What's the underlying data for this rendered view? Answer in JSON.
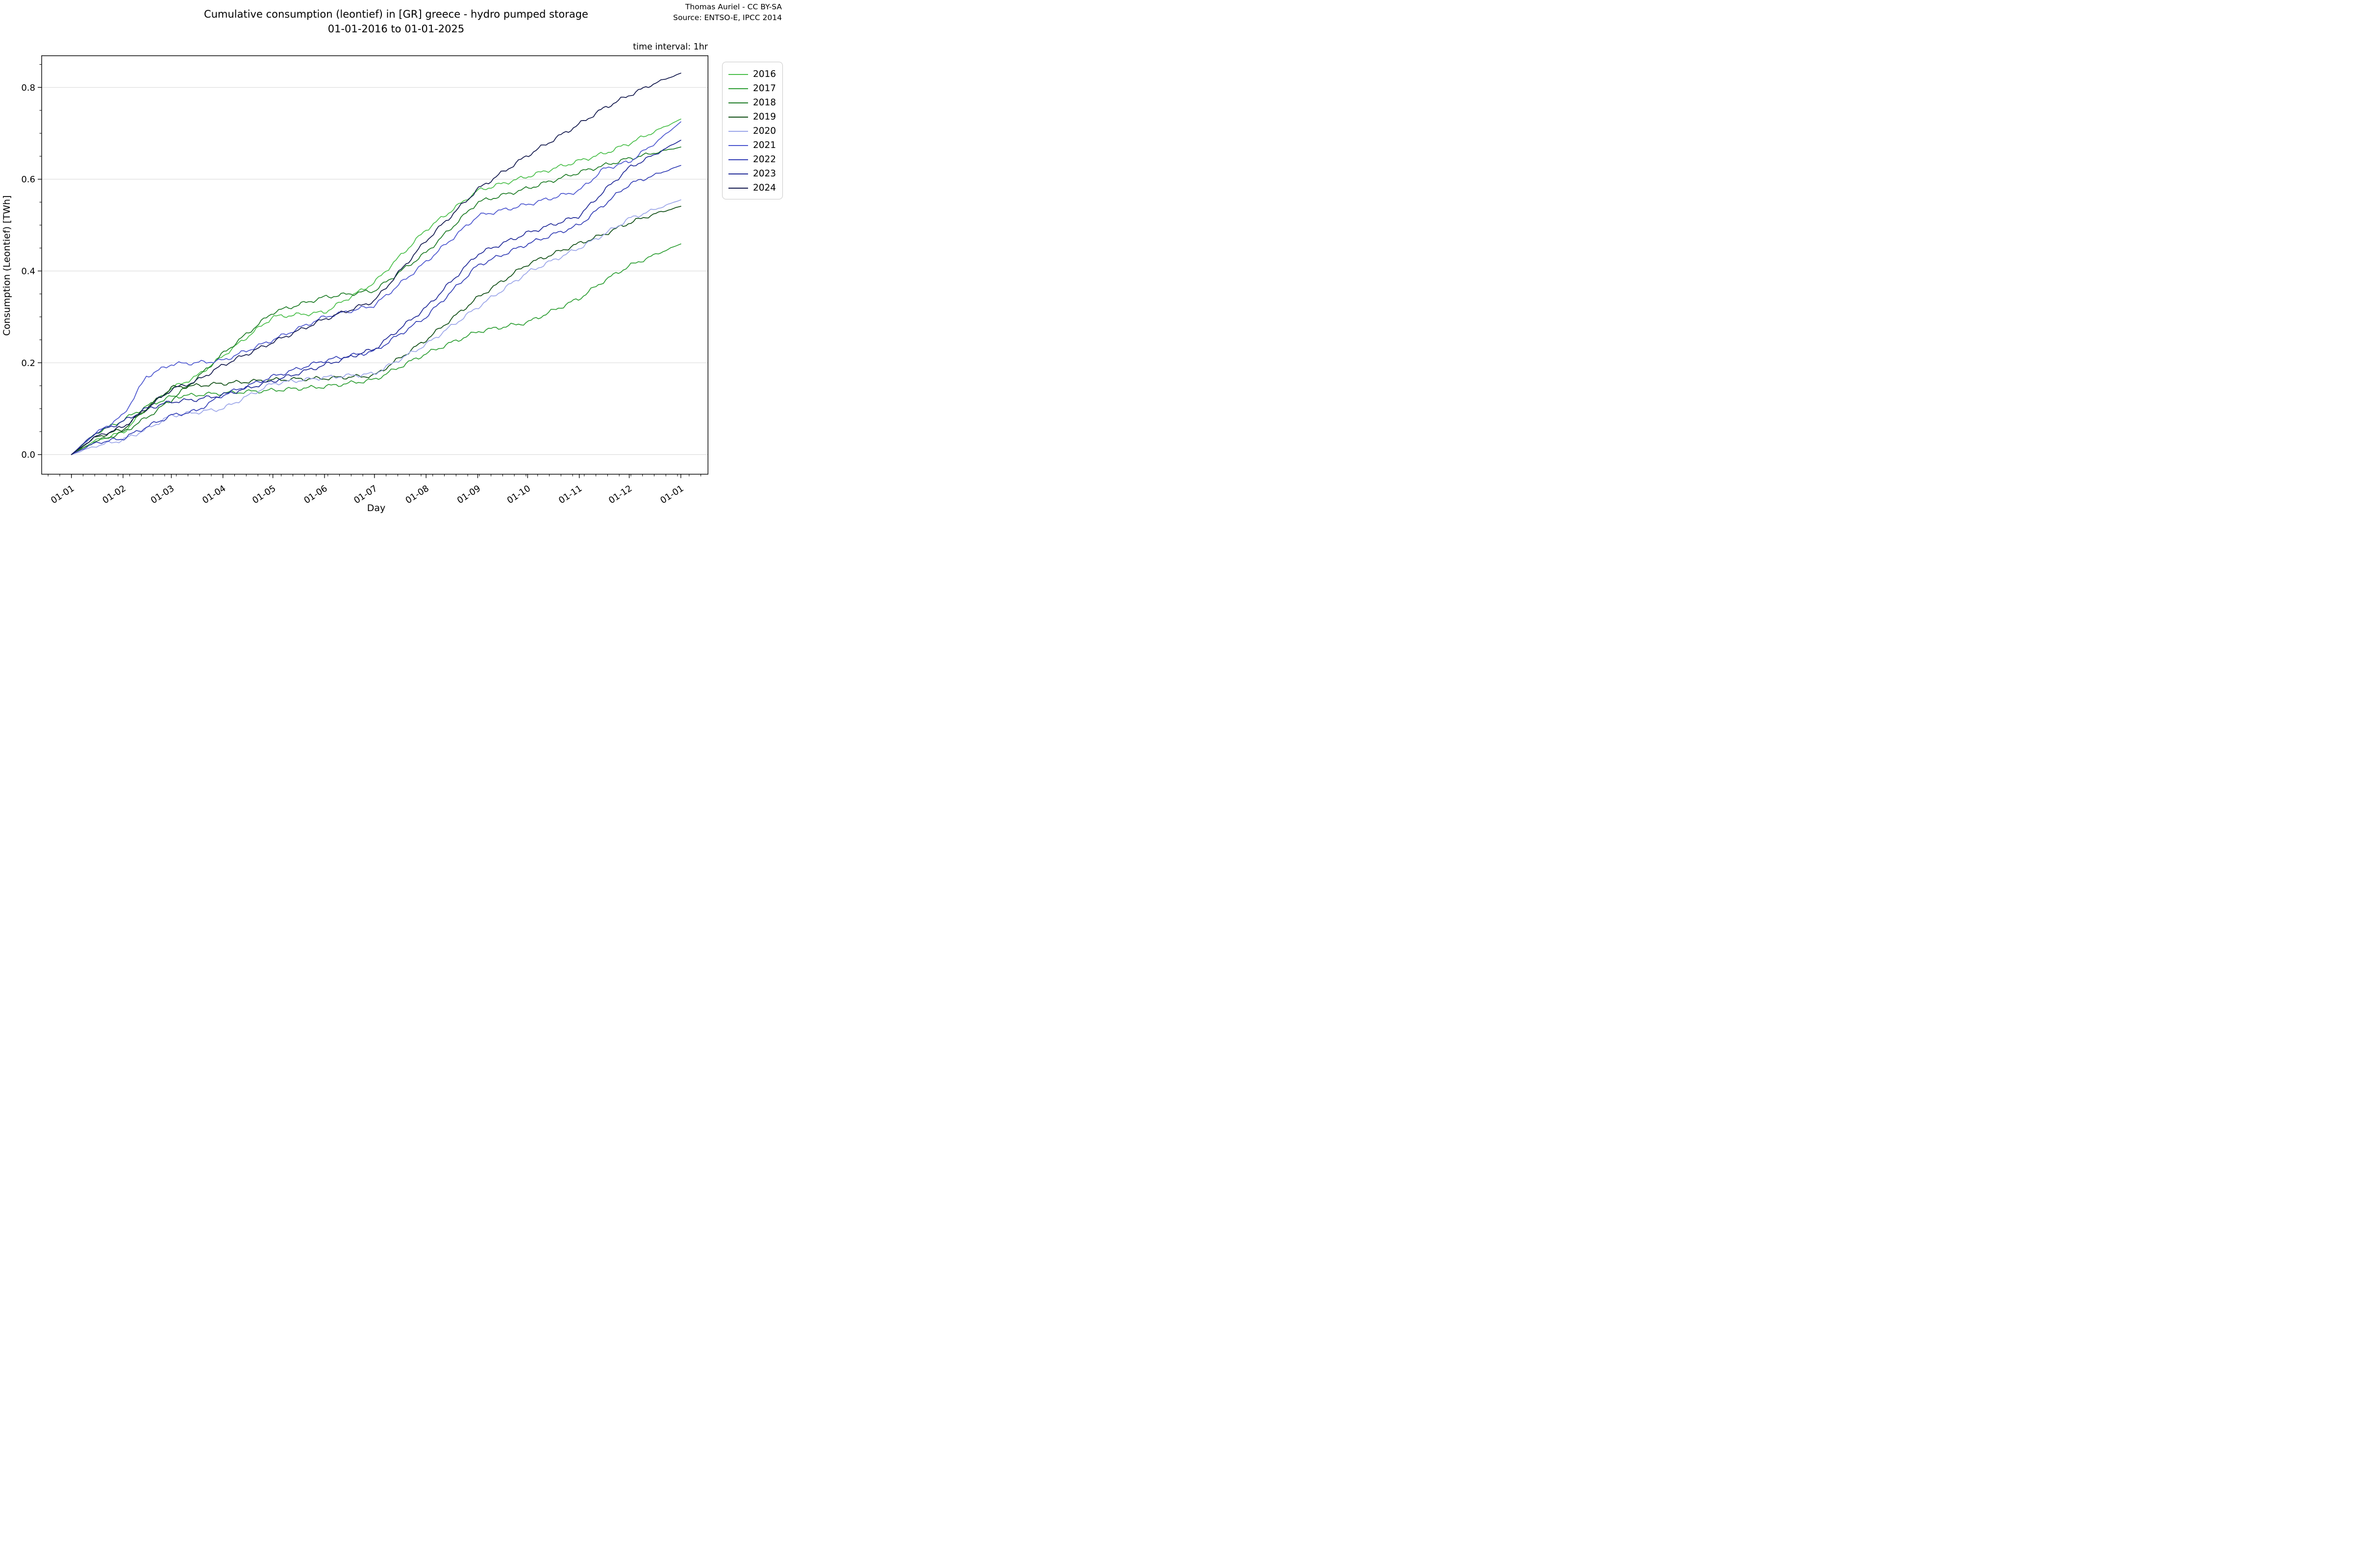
{
  "header": {
    "title_line1": "Cumulative consumption (leontief) in [GR] greece - hydro pumped storage",
    "title_line2": "01-01-2016 to 01-01-2025",
    "credit_line1": "Thomas Auriel - CC BY-SA",
    "credit_line2": "Source: ENTSO-E, IPCC 2014",
    "interval_note": "time interval: 1hr"
  },
  "chart_data": {
    "type": "line",
    "title": "Cumulative consumption (leontief) in [GR] greece - hydro pumped storage",
    "subtitle": "01-01-2016 to 01-01-2025",
    "xlabel": "Day",
    "ylabel": "Consumption (Leontief) [TWh]",
    "grid": "horizontal-only",
    "legend_position": "outside-upper-right",
    "x_axis": {
      "tick_days": [
        0,
        31,
        60,
        91,
        121,
        152,
        182,
        213,
        244,
        274,
        305,
        335,
        366
      ],
      "tick_labels": [
        "01-01",
        "01-02",
        "01-03",
        "01-04",
        "01-05",
        "01-06",
        "01-07",
        "01-08",
        "01-09",
        "01-10",
        "01-11",
        "01-12",
        "01-01"
      ],
      "range_days": [
        0,
        366
      ]
    },
    "y_axis": {
      "ticks": [
        0.0,
        0.2,
        0.4,
        0.6,
        0.8
      ],
      "tick_labels": [
        "0.0",
        "0.2",
        "0.4",
        "0.6",
        "0.8"
      ],
      "ylim": [
        -0.04,
        0.87
      ]
    },
    "sample_days": [
      0,
      14,
      31,
      45,
      60,
      75,
      91,
      121,
      152,
      182,
      213,
      244,
      274,
      305,
      320,
      335,
      351,
      366
    ],
    "series": [
      {
        "name": "2016",
        "color": "#4bbf4b",
        "values": [
          0,
          0.03,
          0.048,
          0.1,
          0.144,
          0.17,
          0.215,
          0.3,
          0.31,
          0.375,
          0.49,
          0.575,
          0.606,
          0.64,
          0.656,
          0.678,
          0.705,
          0.731
        ]
      },
      {
        "name": "2017",
        "color": "#2f9f35",
        "values": [
          0,
          0.045,
          0.075,
          0.105,
          0.126,
          0.13,
          0.134,
          0.14,
          0.148,
          0.163,
          0.22,
          0.268,
          0.288,
          0.34,
          0.379,
          0.411,
          0.436,
          0.459
        ]
      },
      {
        "name": "2018",
        "color": "#1e7c26",
        "values": [
          0,
          0.028,
          0.048,
          0.08,
          0.119,
          0.165,
          0.22,
          0.31,
          0.343,
          0.357,
          0.44,
          0.55,
          0.58,
          0.615,
          0.63,
          0.645,
          0.658,
          0.67
        ]
      },
      {
        "name": "2019",
        "color": "#114f16",
        "values": [
          0,
          0.037,
          0.055,
          0.1,
          0.146,
          0.15,
          0.155,
          0.163,
          0.166,
          0.172,
          0.25,
          0.342,
          0.415,
          0.46,
          0.48,
          0.505,
          0.525,
          0.541
        ]
      },
      {
        "name": "2020",
        "color": "#9ca6e9",
        "values": [
          0,
          0.018,
          0.032,
          0.055,
          0.085,
          0.092,
          0.1,
          0.155,
          0.168,
          0.176,
          0.24,
          0.321,
          0.397,
          0.45,
          0.48,
          0.514,
          0.535,
          0.555
        ]
      },
      {
        "name": "2021",
        "color": "#4d57cf",
        "values": [
          0,
          0.045,
          0.085,
          0.17,
          0.197,
          0.2,
          0.205,
          0.25,
          0.3,
          0.325,
          0.42,
          0.52,
          0.545,
          0.575,
          0.623,
          0.638,
          0.68,
          0.725
        ]
      },
      {
        "name": "2022",
        "color": "#3540b6",
        "values": [
          0,
          0.025,
          0.035,
          0.06,
          0.085,
          0.095,
          0.13,
          0.17,
          0.205,
          0.225,
          0.3,
          0.412,
          0.459,
          0.5,
          0.545,
          0.589,
          0.61,
          0.63
        ]
      },
      {
        "name": "2023",
        "color": "#232c99",
        "values": [
          0,
          0.046,
          0.072,
          0.1,
          0.115,
          0.12,
          0.13,
          0.16,
          0.195,
          0.23,
          0.32,
          0.437,
          0.483,
          0.52,
          0.575,
          0.625,
          0.655,
          0.685
        ]
      },
      {
        "name": "2024",
        "color": "#141a4e",
        "values": [
          0,
          0.038,
          0.06,
          0.1,
          0.142,
          0.16,
          0.195,
          0.245,
          0.295,
          0.335,
          0.466,
          0.578,
          0.652,
          0.72,
          0.755,
          0.783,
          0.81,
          0.831
        ]
      }
    ]
  }
}
